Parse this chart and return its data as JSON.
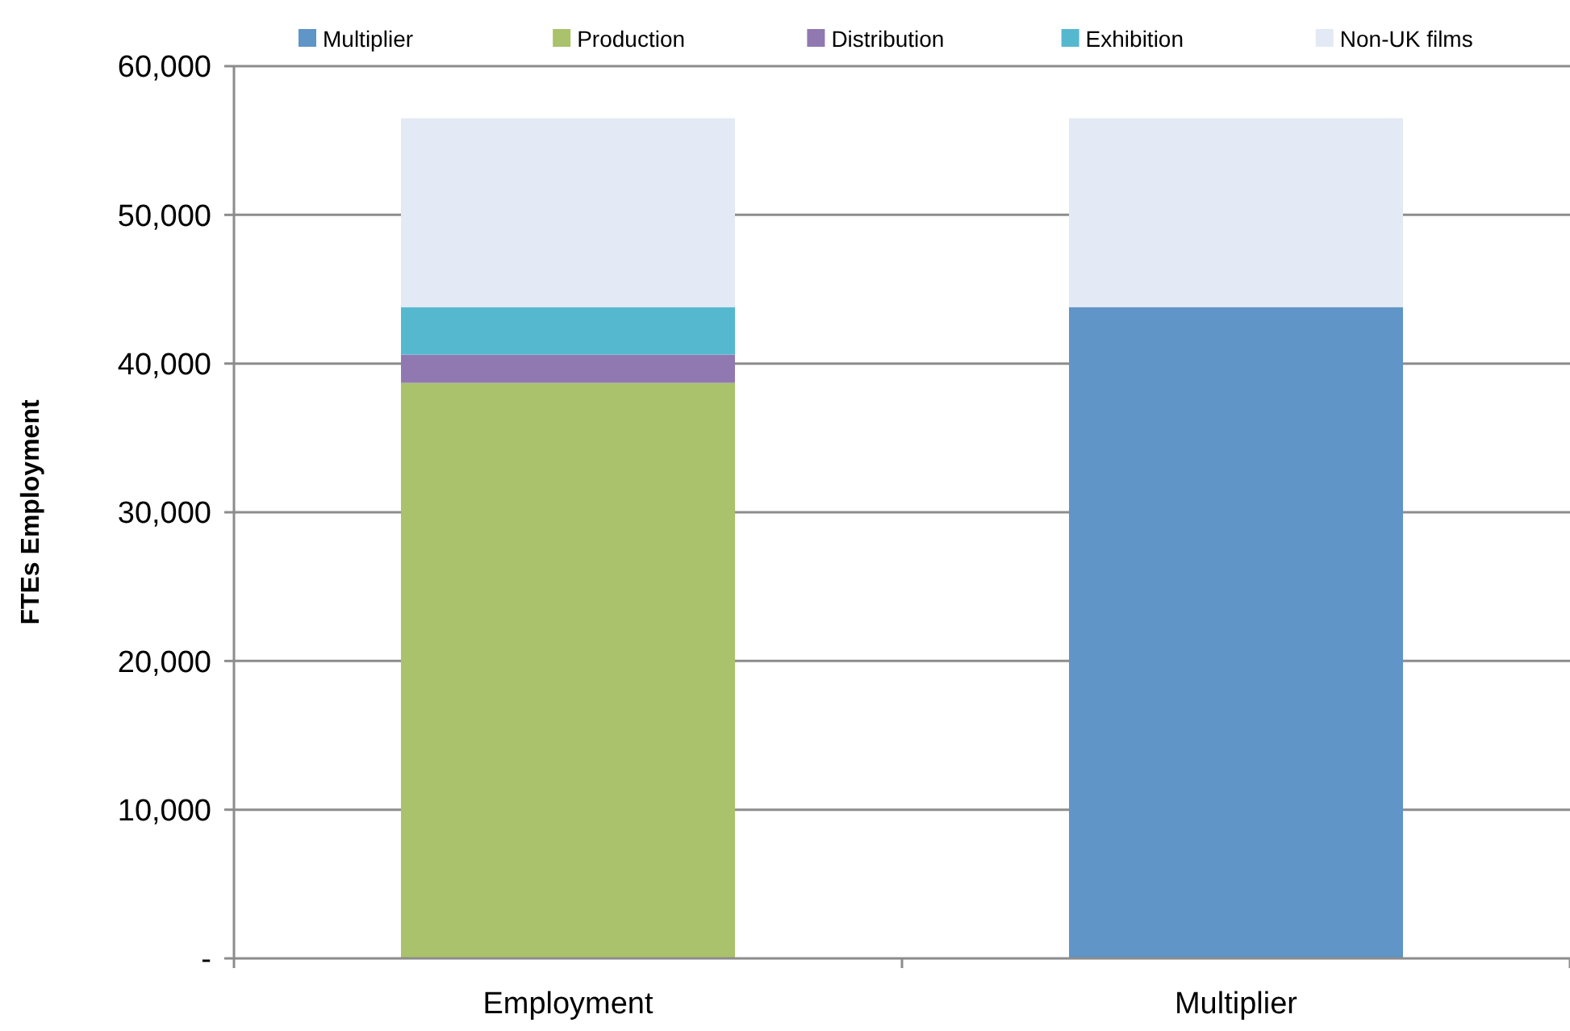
{
  "chart_data": {
    "type": "bar",
    "stacked": true,
    "ylabel": "FTEs Employment",
    "categories": [
      "Employment",
      "Multiplier"
    ],
    "series": [
      {
        "name": "Multiplier",
        "color": "#5f95c7",
        "values": [
          null,
          43800
        ]
      },
      {
        "name": "Production",
        "color": "#a9c26b",
        "values": [
          38700,
          null
        ]
      },
      {
        "name": "Distribution",
        "color": "#9079b1",
        "values": [
          1900,
          null
        ]
      },
      {
        "name": "Exhibition",
        "color": "#56b8cf",
        "values": [
          3200,
          null
        ]
      },
      {
        "name": "Non-UK films",
        "color": "#e3eaf5",
        "values": [
          12700,
          12700
        ]
      }
    ],
    "ylim": [
      0,
      60000
    ],
    "yticks": [
      {
        "value": 0,
        "label": "-"
      },
      {
        "value": 10000,
        "label": "10,000"
      },
      {
        "value": 20000,
        "label": "20,000"
      },
      {
        "value": 30000,
        "label": "30,000"
      },
      {
        "value": 40000,
        "label": "40,000"
      },
      {
        "value": 50000,
        "label": "50,000"
      },
      {
        "value": 60000,
        "label": "60,000"
      }
    ],
    "grid": "y",
    "legend": "top"
  }
}
